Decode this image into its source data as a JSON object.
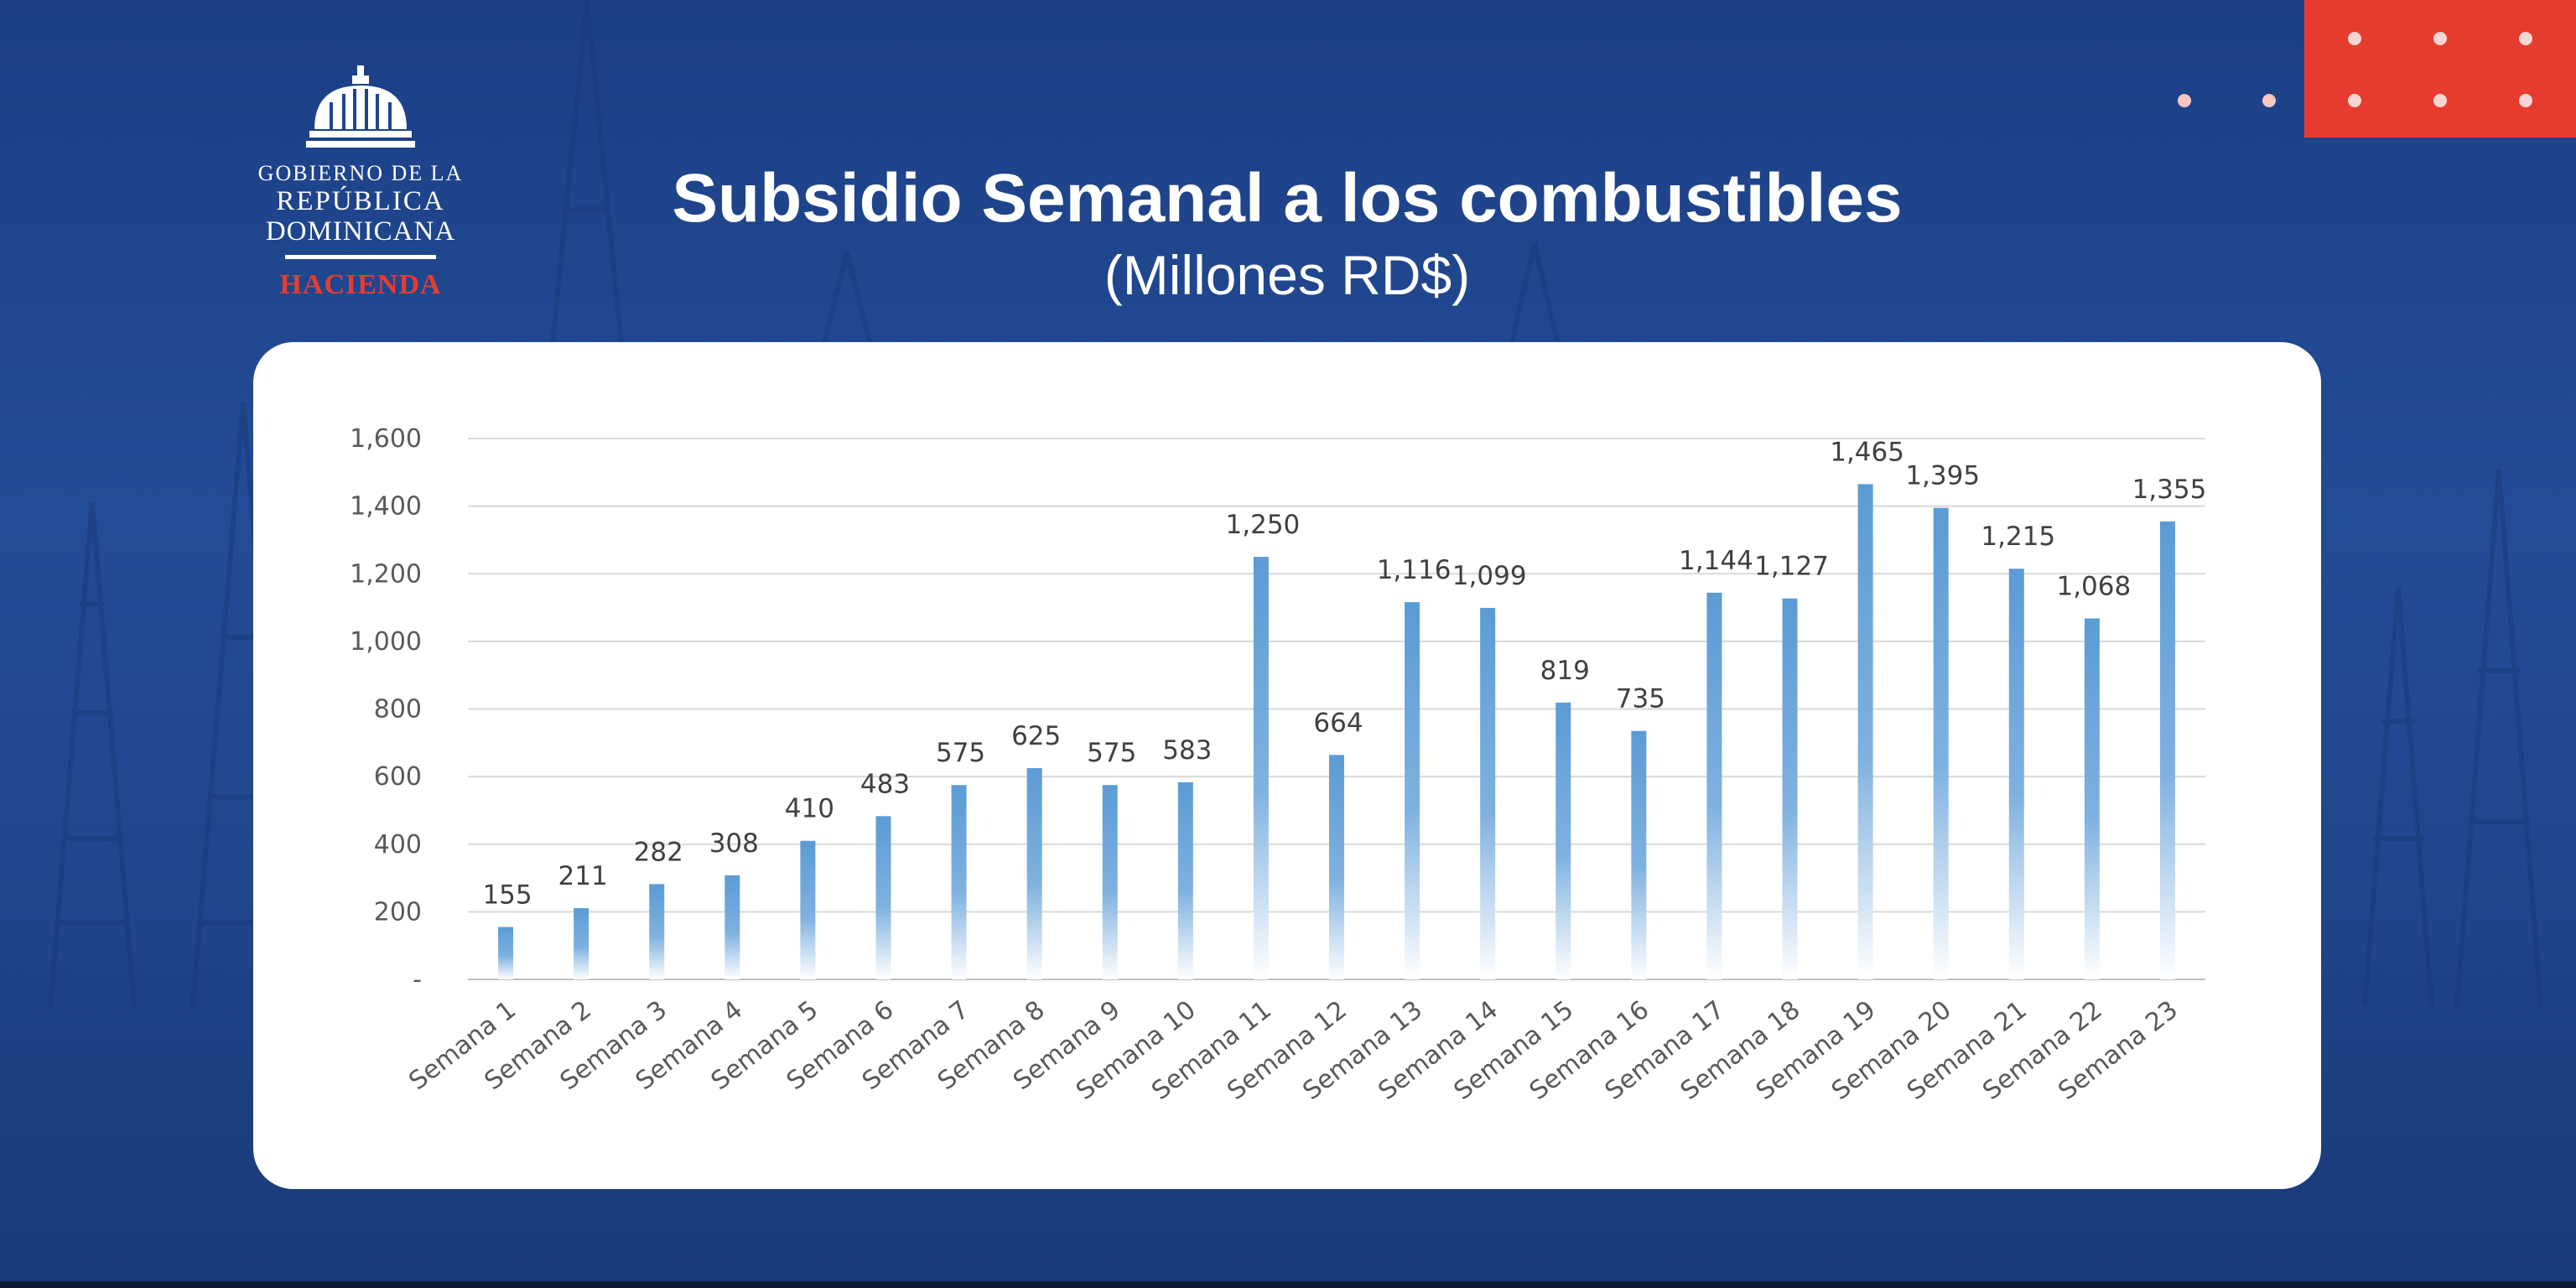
{
  "header": {
    "title": "Subsidio Semanal a los combustibles",
    "subtitle": "(Millones RD$)"
  },
  "logo": {
    "line1": "GOBIERNO DE LA",
    "line2": "REPÚBLICA",
    "line3": "DOMINICANA",
    "line4": "HACIENDA"
  },
  "colors": {
    "background": "#1f4590",
    "accent_red": "#e63c30",
    "bar": "#5b9bd5"
  },
  "chart_data": {
    "type": "bar",
    "title": "Subsidio Semanal a los combustibles",
    "subtitle": "(Millones RD$)",
    "xlabel": "",
    "ylabel": "",
    "ylim": [
      0,
      1600
    ],
    "yticks": [
      0,
      200,
      400,
      600,
      800,
      1000,
      1200,
      1400,
      1600
    ],
    "ytick_labels": [
      "-",
      "200",
      "400",
      "600",
      "800",
      "1,000",
      "1,200",
      "1,400",
      "1,600"
    ],
    "grid": true,
    "legend": "none",
    "categories": [
      "Semana 1",
      "Semana 2",
      "Semana 3",
      "Semana 4",
      "Semana 5",
      "Semana 6",
      "Semana 7",
      "Semana 8",
      "Semana 9",
      "Semana 10",
      "Semana 11",
      "Semana 12",
      "Semana 13",
      "Semana 14",
      "Semana 15",
      "Semana 16",
      "Semana 17",
      "Semana 18",
      "Semana 19",
      "Semana 20",
      "Semana 21",
      "Semana 22",
      "Semana 23"
    ],
    "values": [
      155,
      211,
      282,
      308,
      410,
      483,
      575,
      625,
      575,
      583,
      1250,
      664,
      1116,
      1099,
      819,
      735,
      1144,
      1127,
      1465,
      1395,
      1215,
      1068,
      1355
    ],
    "data_labels": [
      "155",
      "211",
      "282",
      "308",
      "410",
      "483",
      "575",
      "625",
      "575",
      "583",
      "1,250",
      "664",
      "1,116",
      "1,099",
      "819",
      "735",
      "1,144",
      "1,127",
      "1,465",
      "1,395",
      "1,215",
      "1,068",
      "1,355"
    ]
  }
}
